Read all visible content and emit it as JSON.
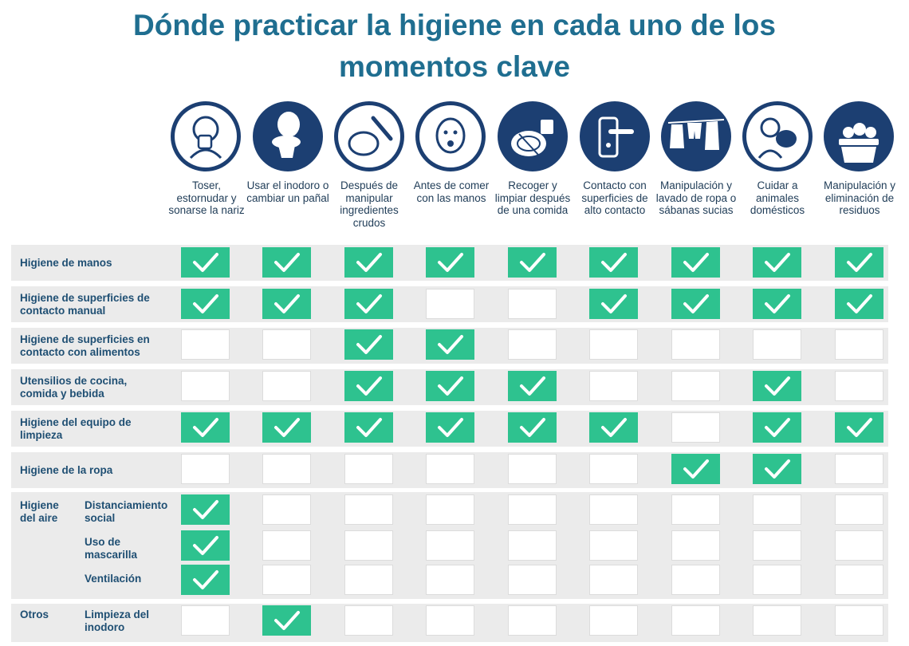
{
  "title": {
    "line1": "Dónde practicar la higiene en cada uno de los",
    "line2": "momentos clave"
  },
  "colors": {
    "title": "#1f6e90",
    "check_cell": "#2ec28f",
    "icon_circle": "#1c3f72",
    "row_label": "#1f4f73"
  },
  "columns": [
    {
      "icon": "person-sneezing-icon",
      "label": "Toser, estornudar y sonarse la nariz"
    },
    {
      "icon": "toilet-icon",
      "label": "Usar el inodoro o cambiar un pañal"
    },
    {
      "icon": "raw-chicken-knife-icon",
      "label": "Después de manipular ingredientes crudos"
    },
    {
      "icon": "person-eating-icon",
      "label": "Antes de comer con las manos"
    },
    {
      "icon": "plate-cup-cutlery-icon",
      "label": "Recoger y limpiar después de una comida"
    },
    {
      "icon": "door-handle-icon",
      "label": "Contacto con superficies de alto contacto"
    },
    {
      "icon": "laundry-line-icon",
      "label": "Manipulación y lavado de ropa o sábanas sucias"
    },
    {
      "icon": "person-hugging-dog-icon",
      "label": "Cuidar a animales domésticos"
    },
    {
      "icon": "waste-bin-icon",
      "label": "Manipulación y eliminación de residuos"
    }
  ],
  "rows": [
    {
      "label": "Higiene de manos",
      "checks": [
        1,
        1,
        1,
        1,
        1,
        1,
        1,
        1,
        1
      ]
    },
    {
      "label": "Higiene de superficies de contacto manual",
      "checks": [
        1,
        1,
        1,
        0,
        0,
        1,
        1,
        1,
        1
      ]
    },
    {
      "label": "Higiene de superficies en contacto con alimentos",
      "checks": [
        0,
        0,
        1,
        1,
        0,
        0,
        0,
        0,
        0
      ]
    },
    {
      "label": "Utensilios de cocina, comida y bebida",
      "checks": [
        0,
        0,
        1,
        1,
        1,
        0,
        0,
        1,
        0
      ]
    },
    {
      "label": "Higiene del equipo de limpieza",
      "checks": [
        1,
        1,
        1,
        1,
        1,
        1,
        0,
        1,
        1
      ]
    },
    {
      "label": "Higiene de la ropa",
      "checks": [
        0,
        0,
        0,
        0,
        0,
        0,
        1,
        1,
        0
      ]
    },
    {
      "group": "Higiene del aire",
      "label": "Distanciamiento social",
      "checks": [
        1,
        0,
        0,
        0,
        0,
        0,
        0,
        0,
        0
      ]
    },
    {
      "group": "Higiene del aire",
      "label": "Uso de mascarilla",
      "checks": [
        1,
        0,
        0,
        0,
        0,
        0,
        0,
        0,
        0
      ]
    },
    {
      "group": "Higiene del aire",
      "label": "Ventilación",
      "checks": [
        1,
        0,
        0,
        0,
        0,
        0,
        0,
        0,
        0
      ]
    },
    {
      "group": "Otros",
      "label": "Limpieza del inodoro",
      "checks": [
        0,
        1,
        0,
        0,
        0,
        0,
        0,
        0,
        0
      ]
    }
  ]
}
